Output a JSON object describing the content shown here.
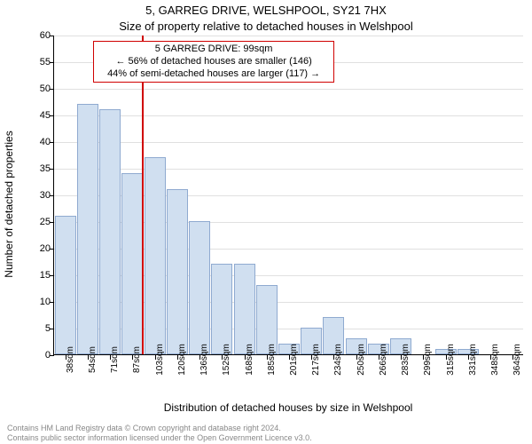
{
  "chart": {
    "type": "histogram",
    "title_line1": "5, GARREG DRIVE, WELSHPOOL, SY21 7HX",
    "title_line2": "Size of property relative to detached houses in Welshpool",
    "ylabel": "Number of detached properties",
    "xlabel": "Distribution of detached houses by size in Welshpool",
    "title_fontsize": 13,
    "label_fontsize": 12,
    "tick_fontsize": 11,
    "background_color": "#ffffff",
    "grid_color": "#e0e0e0",
    "bar_fill": "#d0dff0",
    "bar_border": "#8faad0",
    "marker_color": "#d00000",
    "ylim": [
      0,
      60
    ],
    "ytick_step": 5,
    "xticks": [
      "38sqm",
      "54sqm",
      "71sqm",
      "87sqm",
      "103sqm",
      "120sqm",
      "136sqm",
      "152sqm",
      "168sqm",
      "185sqm",
      "201sqm",
      "217sqm",
      "234sqm",
      "250sqm",
      "266sqm",
      "283sqm",
      "299sqm",
      "315sqm",
      "331sqm",
      "348sqm",
      "364sqm"
    ],
    "values": [
      26,
      47,
      46,
      34,
      37,
      31,
      25,
      17,
      17,
      13,
      2,
      5,
      7,
      3,
      2,
      3,
      0,
      1,
      1,
      0,
      0
    ],
    "bar_width_ratio": 0.95,
    "marker": {
      "label": "5 GARREG DRIVE: 99sqm",
      "sub1": "← 56% of detached houses are smaller (146)",
      "sub2": "44% of semi-detached houses are larger (117) →",
      "x_value": "99sqm",
      "x_ratio": 0.187
    },
    "footer_line1": "Contains HM Land Registry data © Crown copyright and database right 2024.",
    "footer_line2": "Contains public sector information licensed under the Open Government Licence v3.0."
  }
}
